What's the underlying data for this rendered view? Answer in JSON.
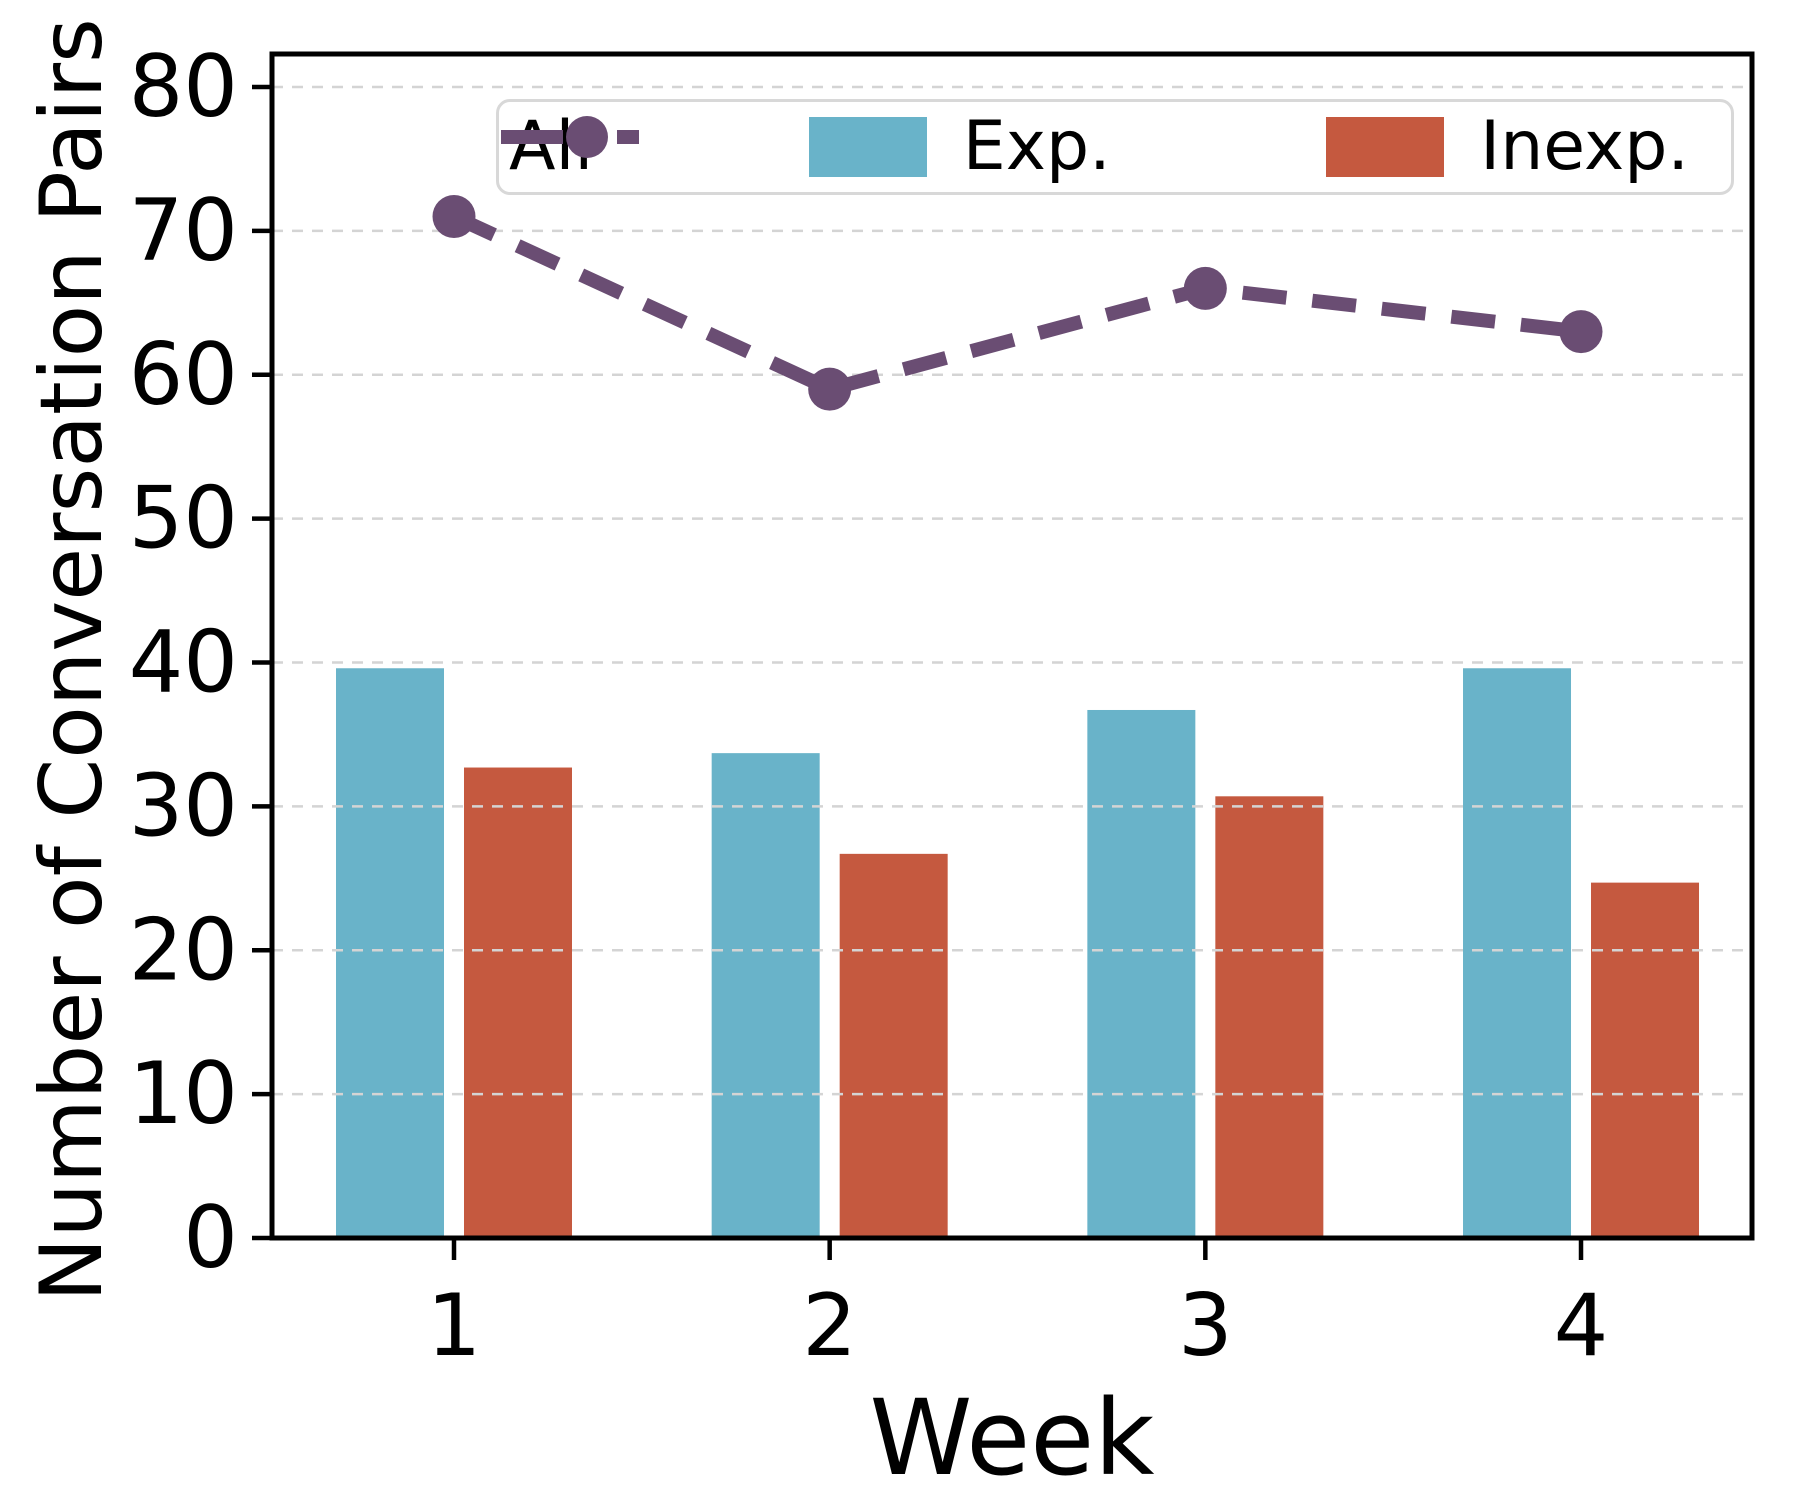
{
  "chart_data": {
    "type": "bar+line",
    "title": "",
    "xlabel": "Week",
    "ylabel": "Number of Conversation Pairs",
    "categories": [
      "1",
      "2",
      "3",
      "4"
    ],
    "yticks": [
      0,
      10,
      20,
      30,
      40,
      50,
      60,
      70,
      80
    ],
    "ylim": [
      0,
      82.3
    ],
    "grid": "horizontal-dashed",
    "legend_position": "top-inside",
    "series": [
      {
        "name": "All",
        "type": "line",
        "style": "dashed-with-circle-markers",
        "color": "#6a4d73",
        "values": [
          71,
          59,
          66,
          63
        ]
      },
      {
        "name": "Exp.",
        "type": "bar",
        "color": "#69b3c9",
        "values": [
          39.6,
          33.7,
          36.7,
          39.6
        ]
      },
      {
        "name": "Inexp.",
        "type": "bar",
        "color": "#c5593f",
        "values": [
          32.7,
          26.7,
          30.7,
          24.7
        ]
      }
    ]
  },
  "colors": {
    "grid": "#d4d4d4",
    "spine": "#000000",
    "legend_border": "#d8d8d8",
    "background": "#ffffff",
    "text": "#000000"
  }
}
